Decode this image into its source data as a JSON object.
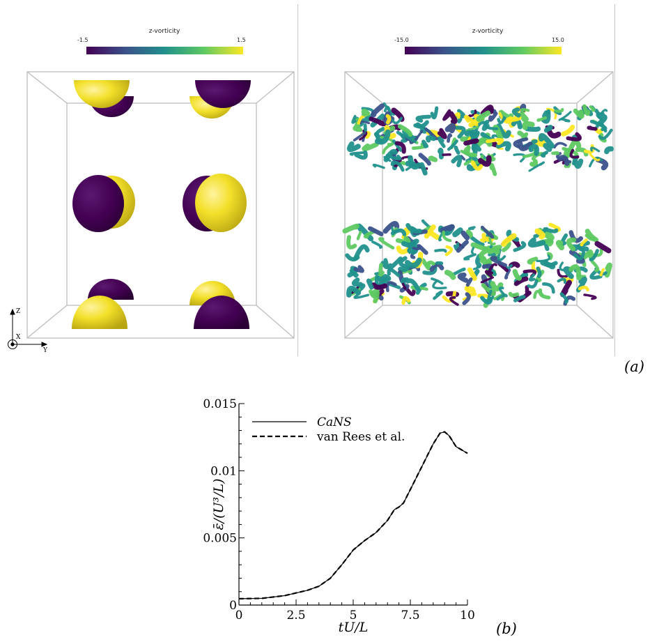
{
  "panel_a": {
    "label": "(a)",
    "left": {
      "colorbar_title": "z-vorticity",
      "colorbar_min": "-1.5",
      "colorbar_max": "1.5"
    },
    "right": {
      "colorbar_title": "z-vorticity",
      "colorbar_min": "-15.0",
      "colorbar_max": "15.0"
    },
    "axes_triad": {
      "z": "Z",
      "x": "X",
      "y": "Y"
    },
    "colors": {
      "purple": "#440154",
      "yellow": "#fde725",
      "teal": "#21918c",
      "green": "#5ec962",
      "blue": "#3b528b"
    }
  },
  "panel_b": {
    "label": "(b)",
    "legend": [
      {
        "name": "CaNS",
        "style": "solid"
      },
      {
        "name": "van Rees et al.",
        "style": "dashed"
      }
    ]
  },
  "chart_data": {
    "type": "line",
    "xlabel": "tU/L",
    "ylabel": "ε̄/(U³/L)",
    "xlim": [
      0,
      10
    ],
    "ylim": [
      0,
      0.015
    ],
    "xticks": [
      "0",
      "2.5",
      "5",
      "7.5",
      "10"
    ],
    "yticks": [
      "0",
      "0.005",
      "0.01",
      "0.015"
    ],
    "series": [
      {
        "name": "CaNS",
        "x": [
          0,
          1,
          2,
          3,
          3.5,
          4,
          4.5,
          5,
          5.5,
          6,
          6.5,
          6.8,
          7,
          7.2,
          7.5,
          8,
          8.5,
          8.8,
          9,
          9.2,
          9.5,
          10
        ],
        "y": [
          0.00047,
          0.0005,
          0.0007,
          0.0011,
          0.0014,
          0.002,
          0.003,
          0.0041,
          0.0048,
          0.0054,
          0.0063,
          0.0071,
          0.0073,
          0.0076,
          0.0086,
          0.0103,
          0.012,
          0.0128,
          0.0129,
          0.0126,
          0.0118,
          0.0113
        ]
      },
      {
        "name": "van Rees et al.",
        "x": [
          0,
          1,
          2,
          3,
          3.5,
          4,
          4.5,
          5,
          5.5,
          6,
          6.5,
          6.8,
          7,
          7.2,
          7.5,
          8,
          8.5,
          8.8,
          9,
          9.2,
          9.5,
          10
        ],
        "y": [
          0.00047,
          0.0005,
          0.0007,
          0.0011,
          0.0014,
          0.002,
          0.003,
          0.0041,
          0.0048,
          0.0054,
          0.0063,
          0.0071,
          0.0073,
          0.0076,
          0.0086,
          0.0103,
          0.012,
          0.0128,
          0.0129,
          0.0126,
          0.0118,
          0.0113
        ]
      }
    ]
  }
}
